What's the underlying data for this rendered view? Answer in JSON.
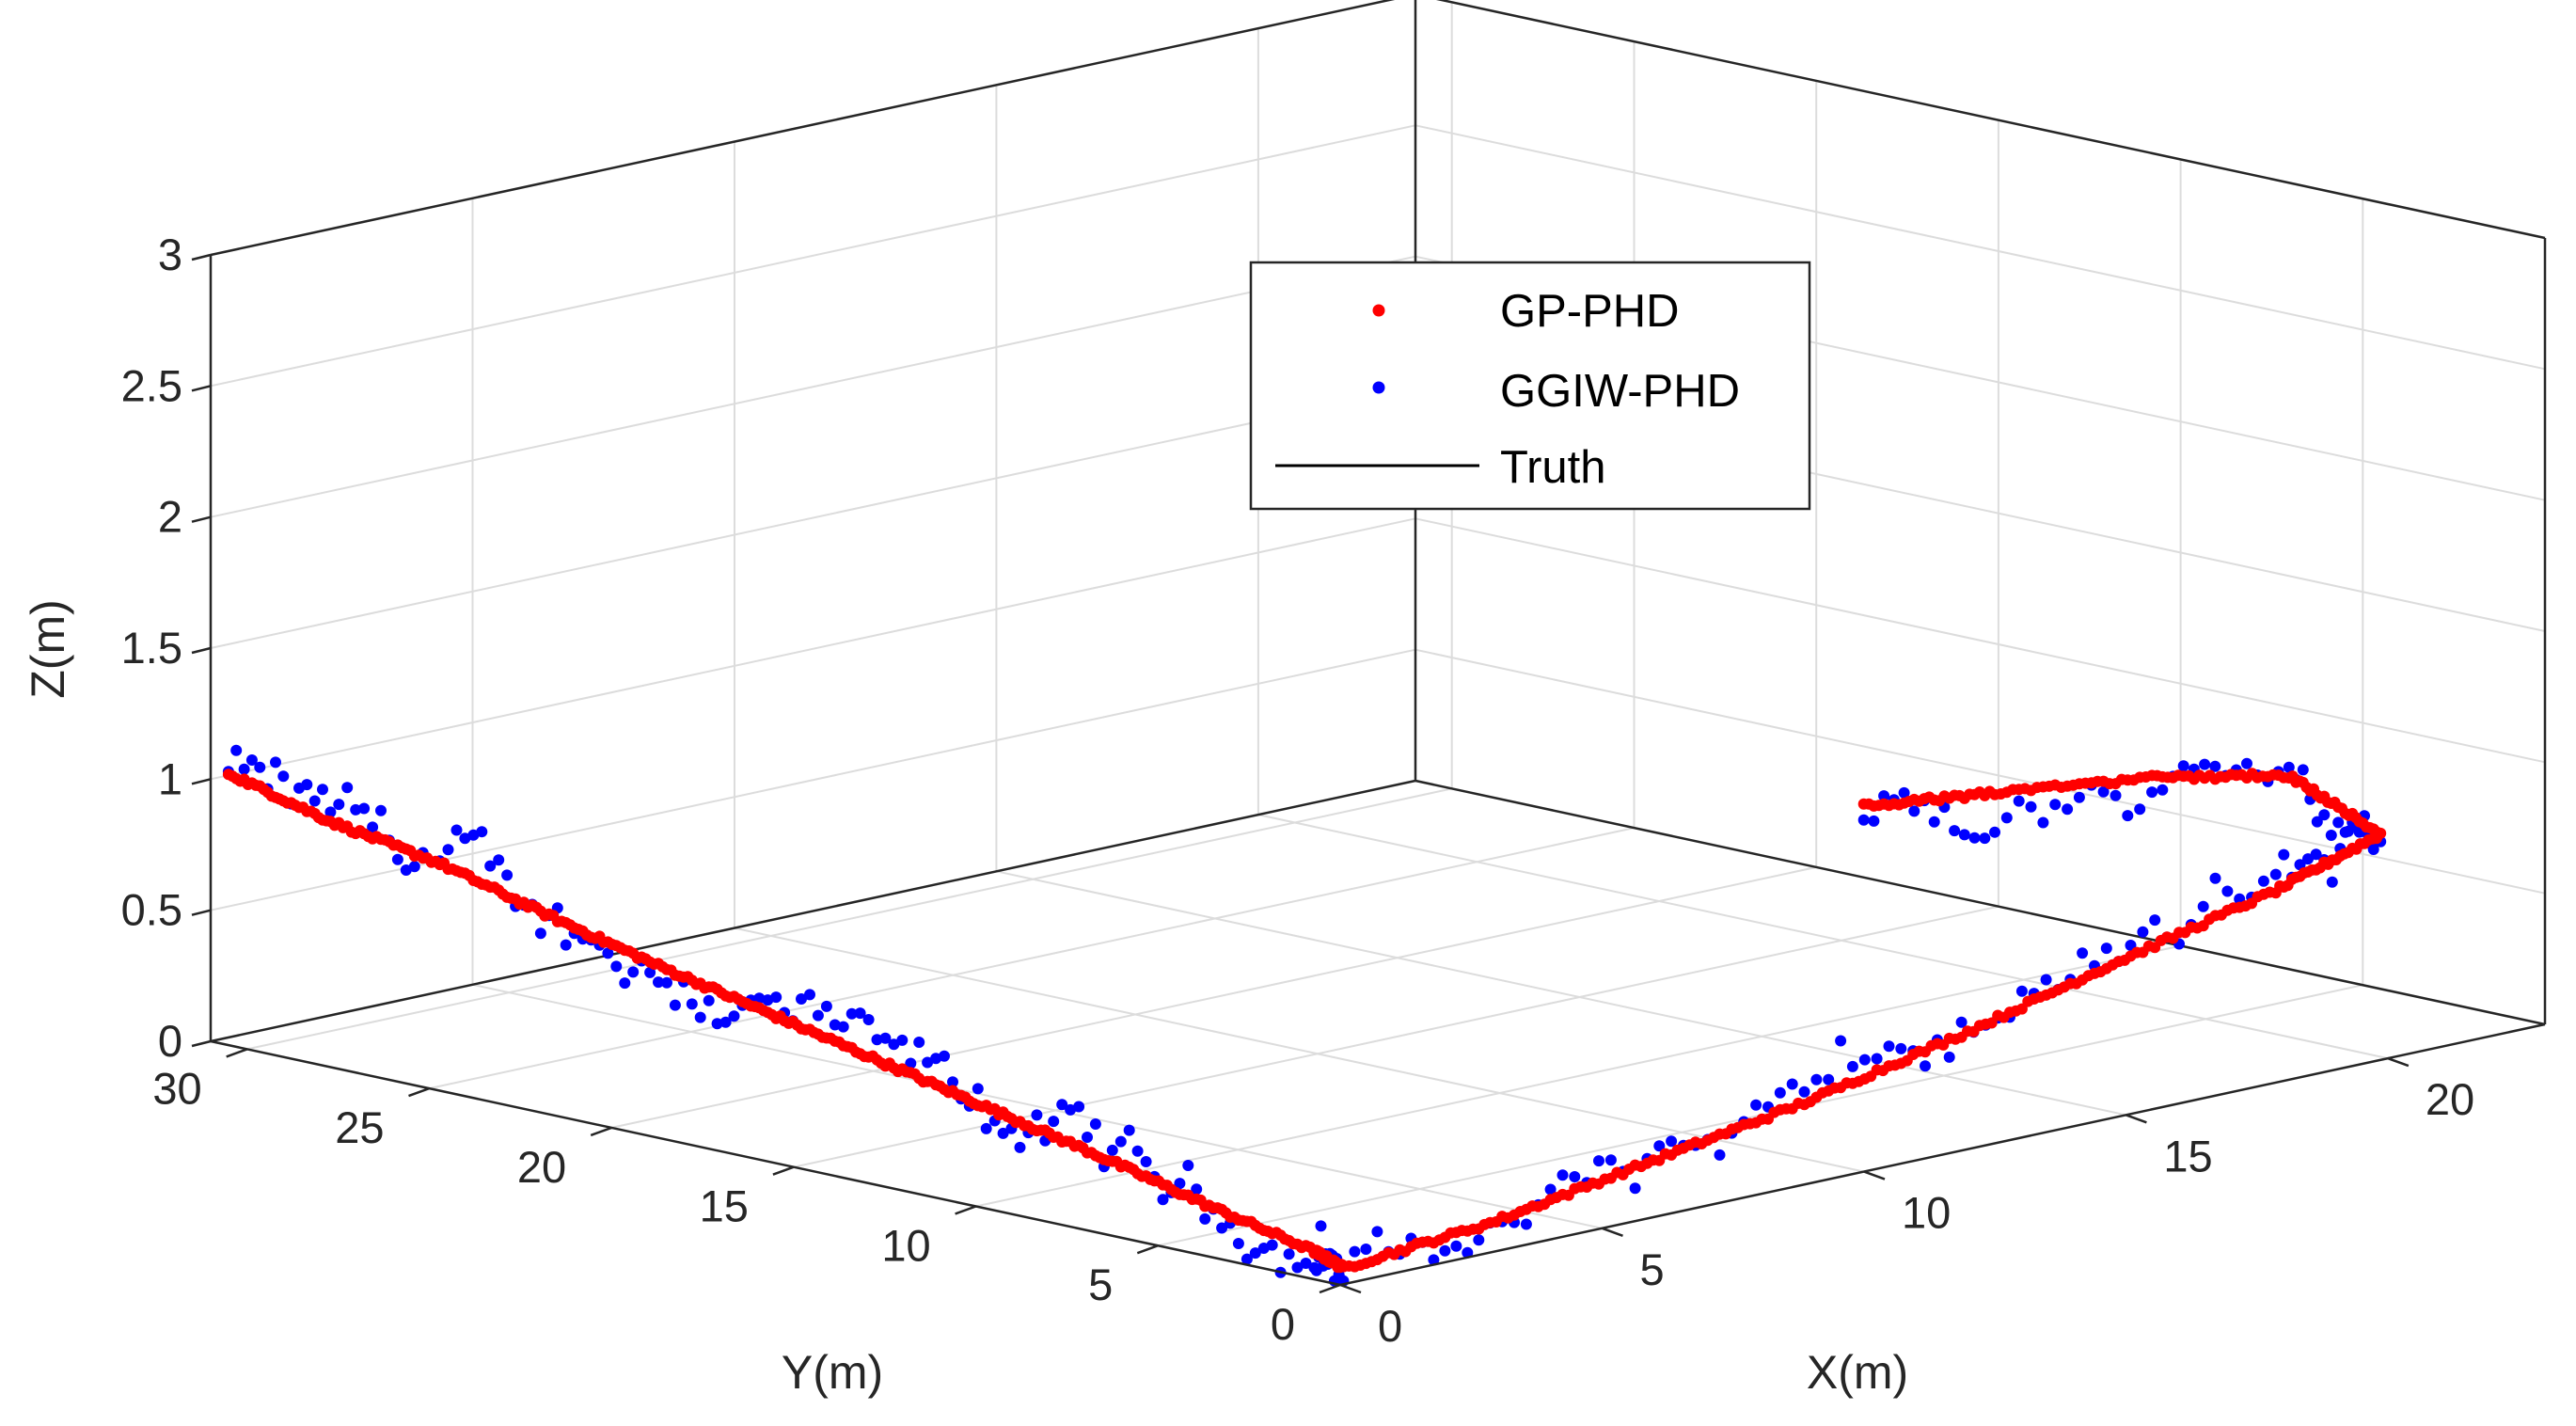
{
  "chart_data": {
    "type": "scatter3d",
    "title": "",
    "xlabel": "X(m)",
    "ylabel": "Y(m)",
    "zlabel": "Z(m)",
    "xlim": [
      0,
      23
    ],
    "ylim": [
      0,
      31
    ],
    "zlim": [
      0,
      3
    ],
    "grid": true,
    "box": true,
    "legend_position": "top-center",
    "x_ticks": [
      "0",
      "5",
      "10",
      "15",
      "20"
    ],
    "y_ticks": [
      "0",
      "5",
      "10",
      "15",
      "20",
      "25",
      "30"
    ],
    "z_ticks": [
      "0",
      "0.5",
      "1",
      "1.5",
      "2",
      "2.5",
      "3"
    ],
    "x_tick_values": [
      0,
      5,
      10,
      15,
      20
    ],
    "y_tick_values": [
      0,
      5,
      10,
      15,
      20,
      25,
      30
    ],
    "z_tick_values": [
      0,
      0.5,
      1,
      1.5,
      2,
      2.5,
      3
    ],
    "colors": {
      "gp": "#ff0000",
      "ggiw": "#0000ff",
      "truth": "#000000"
    },
    "series": [
      {
        "name": "GP-PHD",
        "style": "dots",
        "color": "#ff0000",
        "points": [
          [
            0.2,
            30.8,
            1.02
          ],
          [
            0.2,
            28,
            0.92
          ],
          [
            0.2,
            25,
            0.85
          ],
          [
            0.2,
            22,
            0.74
          ],
          [
            0.2,
            19,
            0.64
          ],
          [
            0.2,
            16,
            0.55
          ],
          [
            0.2,
            13,
            0.46
          ],
          [
            0.2,
            10,
            0.37
          ],
          [
            0.2,
            7,
            0.28
          ],
          [
            0.2,
            4,
            0.18
          ],
          [
            0.2,
            1,
            0.09
          ],
          [
            0.2,
            0.2,
            0.05
          ],
          [
            3,
            0.2,
            0.1
          ],
          [
            6,
            0.2,
            0.2
          ],
          [
            9,
            0.2,
            0.3
          ],
          [
            12,
            0.2,
            0.43
          ],
          [
            15,
            0.2,
            0.58
          ],
          [
            18,
            0.2,
            0.72
          ],
          [
            20,
            0.2,
            0.85
          ],
          [
            20.2,
            3,
            0.98
          ],
          [
            18,
            3.6,
            1.05
          ],
          [
            15,
            3.6,
            1.12
          ],
          [
            12.5,
            3.6,
            1.18
          ]
        ]
      },
      {
        "name": "GGIW-PHD",
        "style": "dots",
        "color": "#0000ff",
        "points": [
          [
            0.2,
            30.8,
            1.02
          ],
          [
            0.2,
            28,
            0.92
          ],
          [
            0.2,
            25,
            0.85
          ],
          [
            0.2,
            22,
            0.74
          ],
          [
            0.2,
            19,
            0.64
          ],
          [
            0.2,
            16,
            0.55
          ],
          [
            0.2,
            13,
            0.46
          ],
          [
            0.2,
            10,
            0.37
          ],
          [
            0.2,
            7,
            0.28
          ],
          [
            0.2,
            4,
            0.18
          ],
          [
            0.2,
            1,
            0.09
          ],
          [
            0.2,
            0.2,
            0.05
          ],
          [
            3,
            0.2,
            0.1
          ],
          [
            6,
            0.2,
            0.2
          ],
          [
            9,
            0.2,
            0.3
          ],
          [
            12,
            0.2,
            0.43
          ],
          [
            15,
            0.2,
            0.58
          ],
          [
            18,
            0.2,
            0.72
          ],
          [
            20,
            0.2,
            0.85
          ],
          [
            20.2,
            3,
            0.98
          ],
          [
            18,
            3.6,
            1.05
          ],
          [
            15,
            3.6,
            1.12
          ],
          [
            12.5,
            3.6,
            1.18
          ]
        ],
        "noise": 0.11
      },
      {
        "name": "Truth",
        "style": "line",
        "color": "#000000",
        "points": [
          [
            0.2,
            30.8,
            1.02
          ],
          [
            0.2,
            28,
            0.92
          ],
          [
            0.2,
            25,
            0.85
          ],
          [
            0.2,
            22,
            0.74
          ],
          [
            0.2,
            19,
            0.64
          ],
          [
            0.2,
            16,
            0.55
          ],
          [
            0.2,
            13,
            0.46
          ],
          [
            0.2,
            10,
            0.37
          ],
          [
            0.2,
            7,
            0.28
          ],
          [
            0.2,
            4,
            0.18
          ],
          [
            0.2,
            1,
            0.09
          ],
          [
            0.2,
            0.2,
            0.05
          ],
          [
            3,
            0.2,
            0.1
          ],
          [
            6,
            0.2,
            0.2
          ],
          [
            9,
            0.2,
            0.3
          ],
          [
            12,
            0.2,
            0.43
          ],
          [
            15,
            0.2,
            0.58
          ],
          [
            18,
            0.2,
            0.72
          ],
          [
            20,
            0.2,
            0.85
          ],
          [
            20.2,
            3,
            0.98
          ],
          [
            18,
            3.6,
            1.05
          ],
          [
            15,
            3.6,
            1.12
          ],
          [
            12.5,
            3.6,
            1.18
          ]
        ]
      }
    ],
    "legend": [
      "GP-PHD",
      "GGIW-PHD",
      "Truth"
    ]
  }
}
